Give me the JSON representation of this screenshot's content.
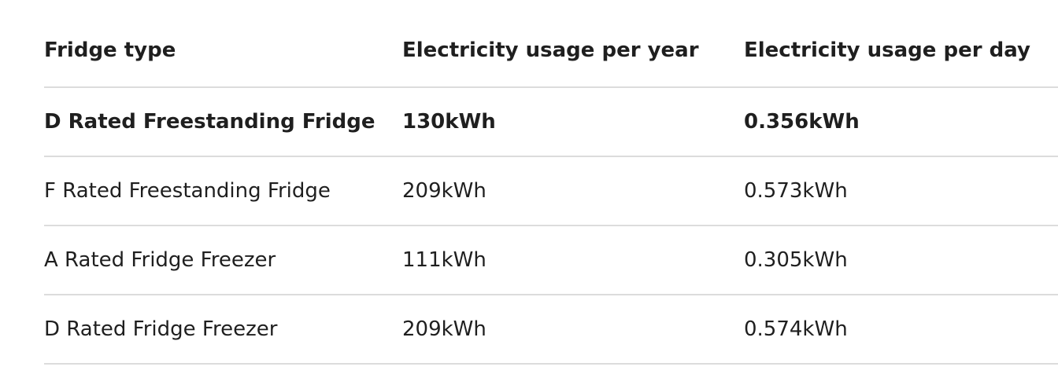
{
  "table": {
    "header": [
      "Fridge type",
      "Electricity usage per year",
      "Electricity usage per day"
    ],
    "rows": [
      [
        "D Rated Freestanding Fridge",
        "130kWh",
        "0.356kWh"
      ],
      [
        "F Rated Freestanding Fridge",
        "209kWh",
        "0.573kWh"
      ],
      [
        "A Rated Fridge Freezer",
        "111kWh",
        "0.305kWh"
      ],
      [
        "D Rated Fridge Freezer",
        "209kWh",
        "0.574kWh"
      ]
    ]
  }
}
